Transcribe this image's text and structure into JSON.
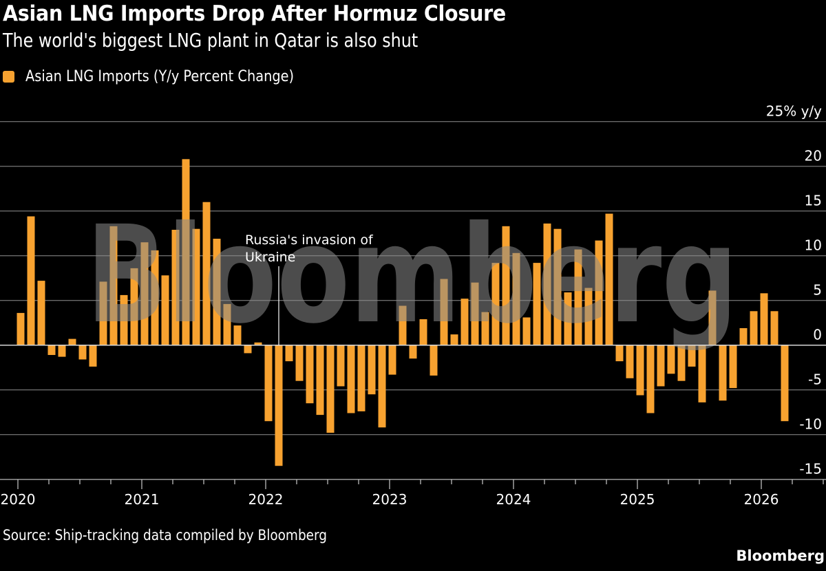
{
  "header": {
    "title": "Asian LNG Imports Drop After Hormuz Closure",
    "subtitle": "The world's biggest LNG plant in Qatar is also shut"
  },
  "legend": {
    "label": "Asian LNG Imports (Y/y Percent Change)",
    "color": "#f7a230"
  },
  "footer": {
    "source": "Source: Ship-tracking data compiled by Bloomberg",
    "brand": "Bloomberg"
  },
  "watermark": "Bloomberg",
  "colors": {
    "bar": "#f7a230",
    "background": "#000000",
    "grid": "#6b6b6b",
    "text": "#ffffff"
  },
  "chart_data": {
    "type": "bar",
    "title": "Asian LNG Imports Drop After Hormuz Closure",
    "subtitle": "The world's biggest LNG plant in Qatar is also shut",
    "xlabel": "",
    "ylabel": "% y/y",
    "ylim": [
      -15,
      25
    ],
    "yticks": [
      25,
      20,
      15,
      10,
      5,
      0,
      -5,
      -10,
      -15
    ],
    "ytick_labels": [
      "25% y/y",
      "20",
      "15",
      "10",
      "5",
      "0",
      "-5",
      "-10",
      "-15"
    ],
    "grid": true,
    "legend_position": "top-left",
    "xtick_labels": [
      "2020",
      "2021",
      "2022",
      "2023",
      "2024",
      "2025",
      "2026"
    ],
    "start": "2020-01",
    "frequency": "monthly",
    "series": [
      {
        "name": "Asian LNG Imports (Y/y Percent Change)",
        "values": [
          3.6,
          14.4,
          7.2,
          -1.1,
          -1.3,
          0.7,
          -1.6,
          -2.4,
          7.1,
          13.3,
          5.6,
          8.6,
          11.5,
          10.6,
          7.8,
          12.9,
          20.8,
          13.0,
          16.0,
          11.9,
          4.6,
          2.2,
          -0.9,
          0.3,
          -8.5,
          -13.5,
          -1.8,
          -4.0,
          -6.5,
          -7.8,
          -9.8,
          -4.6,
          -7.6,
          -7.4,
          -5.5,
          -9.2,
          -3.3,
          4.4,
          -1.5,
          2.9,
          -3.4,
          7.4,
          1.2,
          5.2,
          7.0,
          3.7,
          9.2,
          13.3,
          10.3,
          3.1,
          9.2,
          13.6,
          13.0,
          5.9,
          10.7,
          6.4,
          11.7,
          14.7,
          -1.8,
          -3.7,
          -5.6,
          -7.6,
          -4.6,
          -3.2,
          -4.0,
          -2.4,
          -6.4,
          6.1,
          -6.2,
          -4.8,
          1.9,
          3.8,
          5.8,
          3.8,
          -8.5
        ]
      }
    ],
    "annotations": [
      {
        "text_lines": [
          "Russia's invasion of",
          "Ukraine"
        ],
        "x": "2022-02"
      }
    ]
  }
}
